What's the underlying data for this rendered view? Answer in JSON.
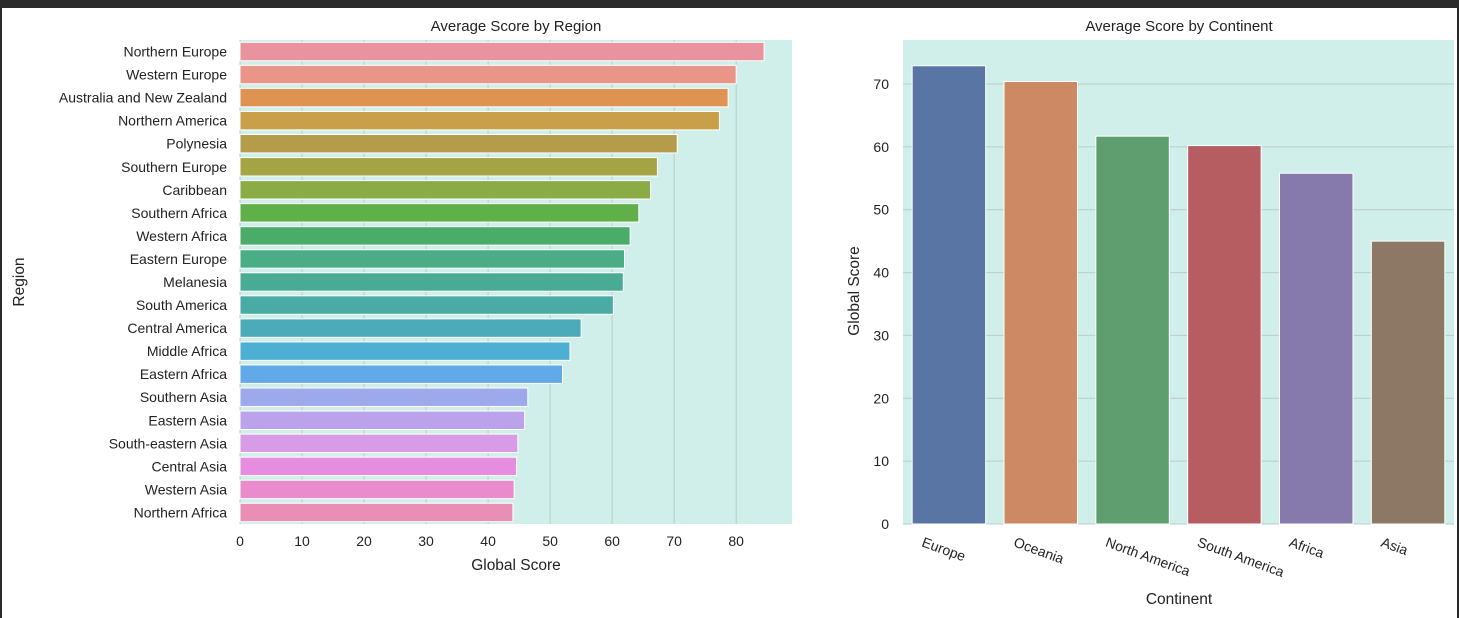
{
  "colors": {
    "plot_bg": "#d1efea",
    "grid": "#b8ccc9",
    "frame_bg": "#2b2b2b"
  },
  "chart_data": [
    {
      "type": "bar",
      "orientation": "horizontal",
      "title": "Average Score by Region",
      "xlabel": "Global Score",
      "ylabel": "Region",
      "xlim": [
        0,
        89
      ],
      "xticks": [
        0,
        10,
        20,
        30,
        40,
        50,
        60,
        70,
        80
      ],
      "grid": true,
      "categories": [
        "Northern Europe",
        "Western Europe",
        "Australia and New Zealand",
        "Northern America",
        "Polynesia",
        "Southern Europe",
        "Caribbean",
        "Southern Africa",
        "Western Africa",
        "Eastern Europe",
        "Melanesia",
        "South America",
        "Central America",
        "Middle Africa",
        "Eastern Africa",
        "Southern Asia",
        "Eastern Asia",
        "South-eastern Asia",
        "Central Asia",
        "Western Asia",
        "Northern Africa"
      ],
      "values": [
        84.5,
        80.0,
        78.7,
        77.3,
        70.5,
        67.3,
        66.2,
        64.3,
        62.9,
        62.0,
        61.8,
        60.2,
        55.0,
        53.2,
        52.0,
        46.4,
        45.9,
        44.8,
        44.6,
        44.2,
        44.0
      ],
      "colors": [
        "#e8939e",
        "#e99587",
        "#df9352",
        "#c9a049",
        "#b59c4b",
        "#a5a444",
        "#8aab46",
        "#60b049",
        "#4bab69",
        "#4aad86",
        "#4aab95",
        "#4aaba4",
        "#4cabb8",
        "#4dafd4",
        "#61a9e7",
        "#9ea9ec",
        "#bba3ec",
        "#d89be6",
        "#e68de0",
        "#e98ccb",
        "#e98eb5"
      ]
    },
    {
      "type": "bar",
      "orientation": "vertical",
      "title": "Average Score by Continent",
      "xlabel": "Continent",
      "ylabel": "Global Score",
      "ylim": [
        0,
        77
      ],
      "yticks": [
        0,
        10,
        20,
        30,
        40,
        50,
        60,
        70
      ],
      "grid": true,
      "categories": [
        "Europe",
        "Oceania",
        "North America",
        "South America",
        "Africa",
        "Asia"
      ],
      "values": [
        72.9,
        70.4,
        61.7,
        60.2,
        55.8,
        45.0
      ],
      "colors": [
        "#5975a4",
        "#cc8963",
        "#5f9e6e",
        "#b55d60",
        "#857aab",
        "#8d7866"
      ]
    }
  ]
}
